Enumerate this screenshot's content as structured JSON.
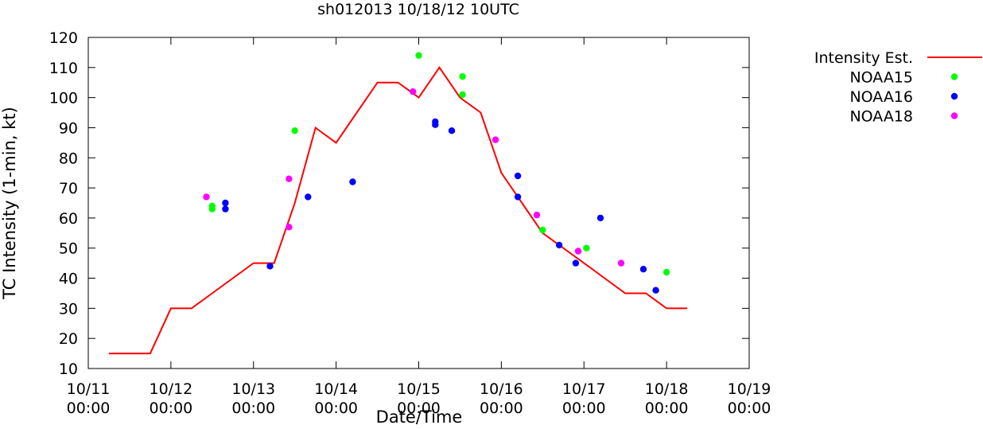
{
  "chart_data": {
    "type": "line",
    "title": "sh012013 10/18/12 10UTC",
    "xlabel": "Date/Time",
    "ylabel": "TC Intensity (1-min, kt)",
    "ylim": [
      10,
      120
    ],
    "yticks": [
      10,
      20,
      30,
      40,
      50,
      60,
      70,
      80,
      90,
      100,
      110,
      120
    ],
    "xlim": [
      0,
      8
    ],
    "x_unit": "days since 10/11 00:00",
    "xticks": [
      {
        "value": 0,
        "date": "10/11",
        "time": "00:00"
      },
      {
        "value": 1,
        "date": "10/12",
        "time": "00:00"
      },
      {
        "value": 2,
        "date": "10/13",
        "time": "00:00"
      },
      {
        "value": 3,
        "date": "10/14",
        "time": "00:00"
      },
      {
        "value": 4,
        "date": "10/15",
        "time": "00:00"
      },
      {
        "value": 5,
        "date": "10/16",
        "time": "00:00"
      },
      {
        "value": 6,
        "date": "10/17",
        "time": "00:00"
      },
      {
        "value": 7,
        "date": "10/18",
        "time": "00:00"
      },
      {
        "value": 8,
        "date": "10/19",
        "time": "00:00"
      }
    ],
    "legend_position": "outside-right",
    "series": [
      {
        "name": "Intensity Est.",
        "style": "line",
        "color": "#ff0000",
        "points": [
          [
            0.25,
            15
          ],
          [
            0.5,
            15
          ],
          [
            0.75,
            15
          ],
          [
            1.0,
            30
          ],
          [
            1.25,
            30
          ],
          [
            1.5,
            35
          ],
          [
            1.75,
            40
          ],
          [
            2.0,
            45
          ],
          [
            2.25,
            45
          ],
          [
            2.5,
            65
          ],
          [
            2.75,
            90
          ],
          [
            3.0,
            85
          ],
          [
            3.25,
            95
          ],
          [
            3.5,
            105
          ],
          [
            3.75,
            105
          ],
          [
            4.0,
            100
          ],
          [
            4.25,
            110
          ],
          [
            4.5,
            100
          ],
          [
            4.75,
            95
          ],
          [
            5.0,
            75
          ],
          [
            5.25,
            65
          ],
          [
            5.5,
            55
          ],
          [
            5.75,
            50
          ],
          [
            6.0,
            45
          ],
          [
            6.25,
            40
          ],
          [
            6.5,
            35
          ],
          [
            6.75,
            35
          ],
          [
            7.0,
            30
          ],
          [
            7.25,
            30
          ]
        ]
      },
      {
        "name": "NOAA15",
        "style": "points",
        "color": "#00ff00",
        "points": [
          [
            1.5,
            64
          ],
          [
            1.5,
            63
          ],
          [
            2.5,
            89
          ],
          [
            4.0,
            114
          ],
          [
            4.53,
            107
          ],
          [
            4.53,
            101
          ],
          [
            5.5,
            56
          ],
          [
            6.03,
            50
          ],
          [
            7.0,
            42
          ]
        ]
      },
      {
        "name": "NOAA16",
        "style": "points",
        "color": "#0000ff",
        "points": [
          [
            1.66,
            65
          ],
          [
            1.66,
            63
          ],
          [
            2.2,
            44
          ],
          [
            2.66,
            67
          ],
          [
            3.2,
            72
          ],
          [
            4.2,
            92
          ],
          [
            4.2,
            91
          ],
          [
            4.4,
            89
          ],
          [
            5.2,
            74
          ],
          [
            5.2,
            67
          ],
          [
            5.7,
            51
          ],
          [
            5.9,
            45
          ],
          [
            6.2,
            60
          ],
          [
            6.72,
            43
          ],
          [
            6.87,
            36
          ]
        ]
      },
      {
        "name": "NOAA18",
        "style": "points",
        "color": "#ff00ff",
        "points": [
          [
            1.43,
            67
          ],
          [
            2.43,
            73
          ],
          [
            2.43,
            57
          ],
          [
            3.93,
            102
          ],
          [
            4.93,
            86
          ],
          [
            5.43,
            61
          ],
          [
            5.93,
            49
          ],
          [
            6.45,
            45
          ]
        ]
      }
    ]
  }
}
